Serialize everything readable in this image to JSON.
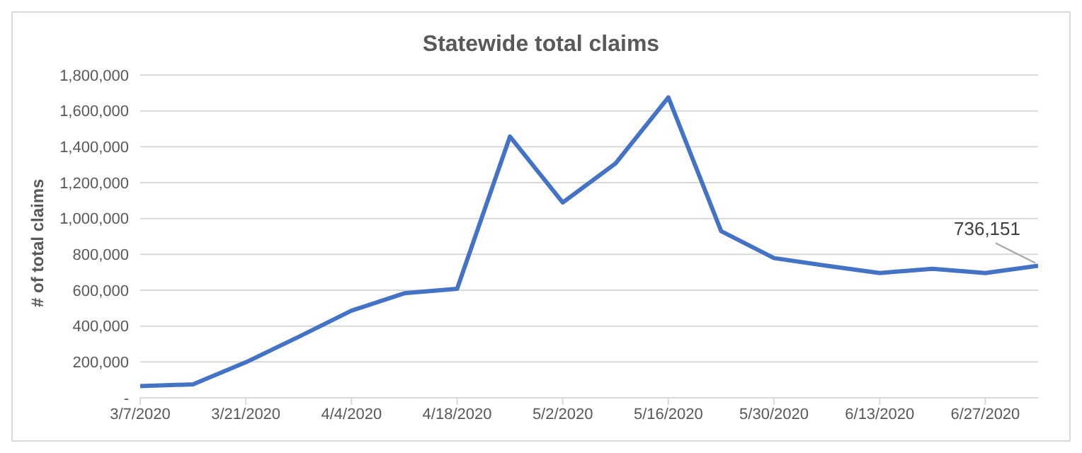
{
  "chart_data": {
    "type": "line",
    "title": "Statewide total claims",
    "ylabel": "# of total claims",
    "categories": [
      "3/7/2020",
      null,
      "3/21/2020",
      null,
      "4/4/2020",
      null,
      "4/18/2020",
      null,
      "5/2/2020",
      null,
      "5/16/2020",
      null,
      "5/30/2020",
      null,
      "6/13/2020",
      null,
      "6/27/2020",
      null
    ],
    "series": [
      {
        "color": "#4472c4",
        "values": [
          65000,
          75000,
          198000,
          340000,
          486000,
          583000,
          608000,
          1457000,
          1089000,
          1307000,
          1675000,
          929000,
          779000,
          736000,
          696000,
          719000,
          696000,
          736151
        ],
        "value_labels": [
          null,
          null,
          null,
          null,
          null,
          null,
          null,
          null,
          null,
          null,
          null,
          null,
          null,
          null,
          null,
          null,
          null,
          "736,151"
        ]
      }
    ],
    "ylim": [
      0,
      1800000
    ],
    "yticks": [
      {
        "value": 0,
        "label": "-"
      },
      {
        "value": 200000,
        "label": "200,000"
      },
      {
        "value": 400000,
        "label": "400,000"
      },
      {
        "value": 600000,
        "label": "600,000"
      },
      {
        "value": 800000,
        "label": "800,000"
      },
      {
        "value": 1000000,
        "label": "1,000,000"
      },
      {
        "value": 1200000,
        "label": "1,200,000"
      },
      {
        "value": 1400000,
        "label": "1,400,000"
      },
      {
        "value": 1600000,
        "label": "1,600,000"
      },
      {
        "value": 1800000,
        "label": "1,800,000"
      }
    ],
    "grid": "y",
    "marker": "none",
    "line_style": "solid"
  }
}
